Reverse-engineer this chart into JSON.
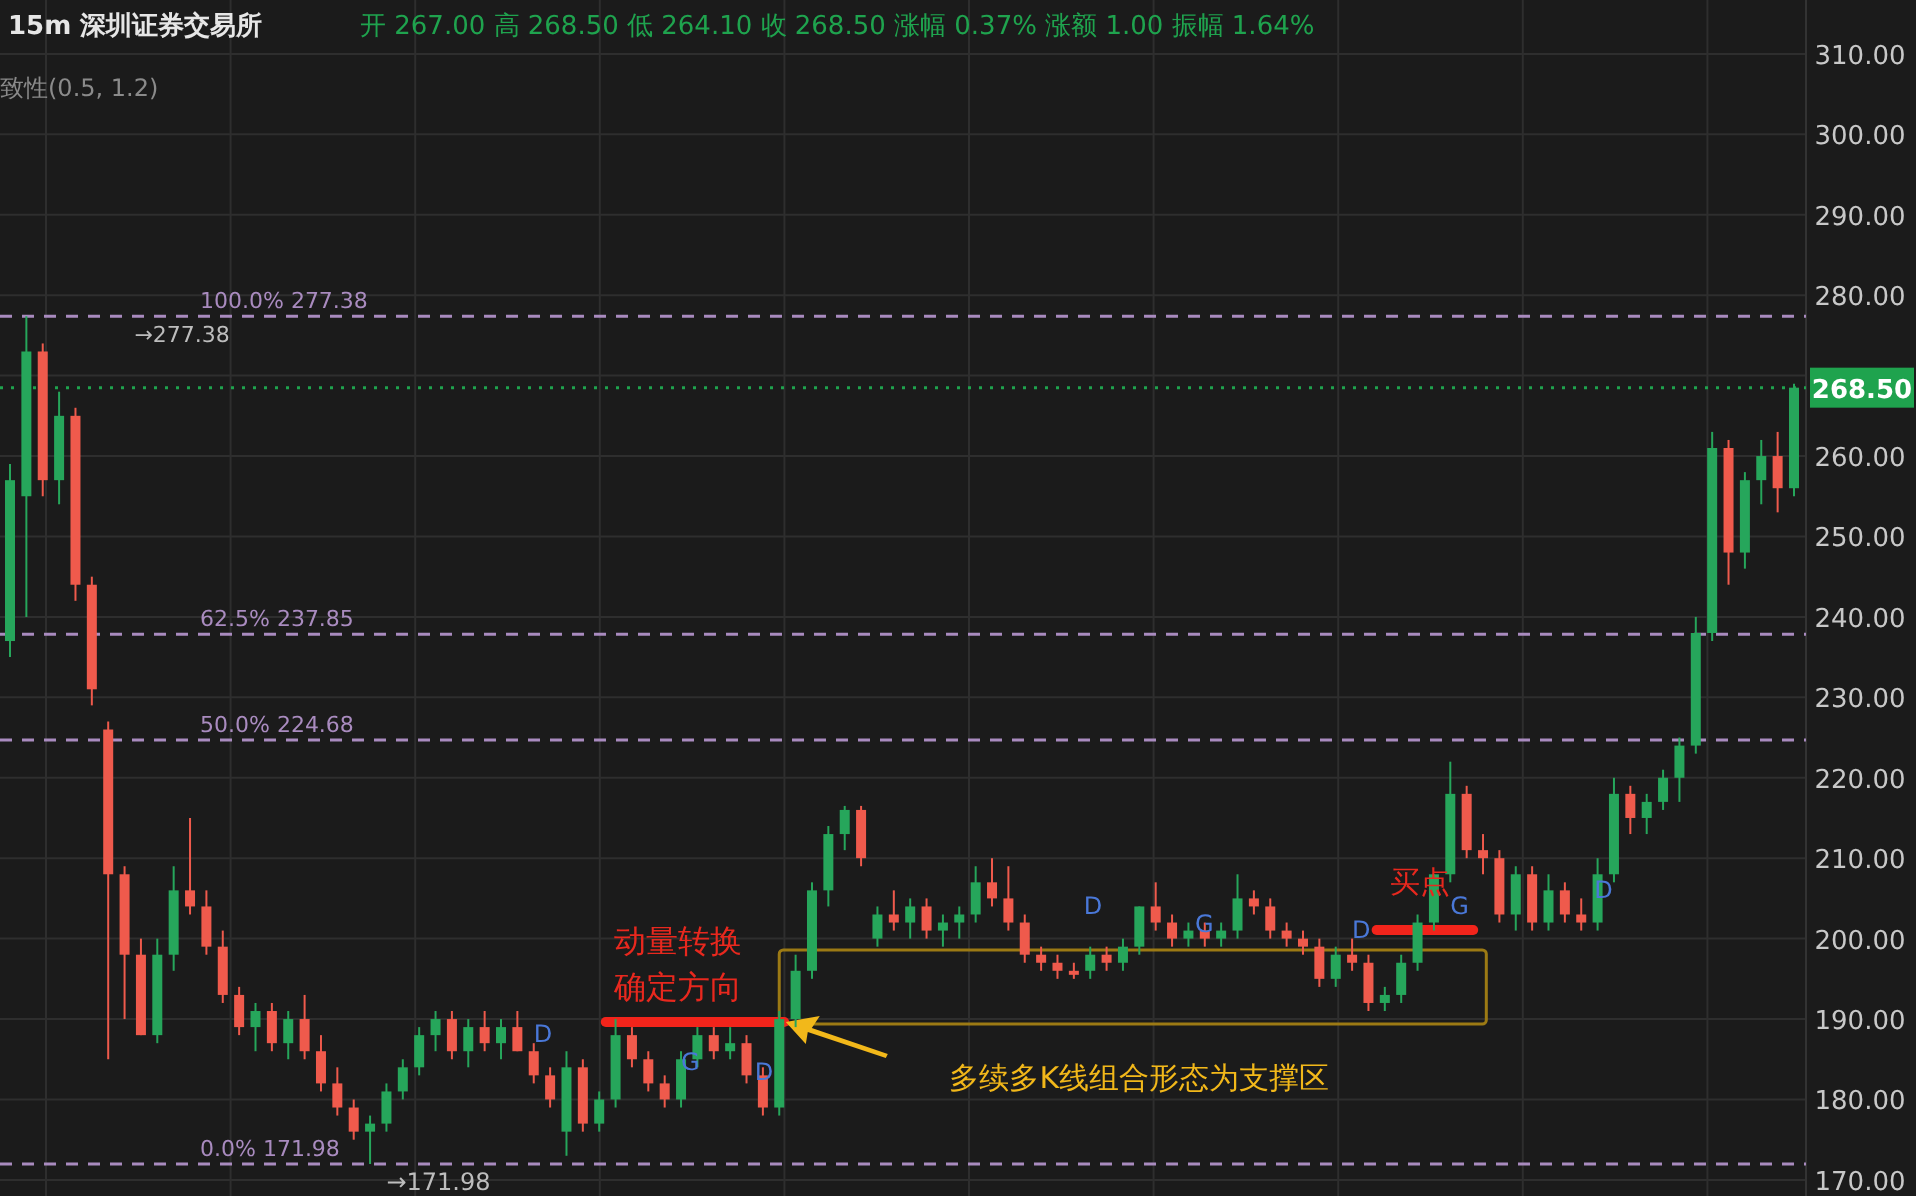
{
  "chart_data": {
    "type": "candlestick",
    "title": "15m 深圳证券交易所",
    "subtitle": "开 267.00 高 268.50 低 264.10 收 268.50 涨幅 0.37% 涨额 1.00 振幅 1.64%",
    "annotations": [
      "致性(0.5, 1.2)",
      {
        "text": "→171.98",
        "y": 171.98
      },
      {
        "text": "→277.38",
        "y": 277.38
      },
      "动量转换",
      "确定方向",
      "多续多K线组合形态为支撑区",
      "买点",
      "D",
      "G",
      "D",
      "D",
      "G",
      "D",
      "G",
      "D"
    ],
    "categories": [
      null,
      null,
      null,
      null,
      null,
      null,
      null,
      null,
      null,
      null,
      null,
      null,
      null,
      null,
      null,
      null,
      null,
      null,
      null,
      null,
      null,
      null,
      null,
      null,
      null,
      null,
      null,
      null,
      null,
      null,
      null,
      null,
      null,
      null,
      null,
      null,
      null,
      null,
      null,
      null,
      null,
      null,
      null,
      null,
      null,
      null,
      null,
      null,
      null,
      null,
      null,
      null,
      null,
      null,
      null,
      null,
      null,
      null,
      null,
      null,
      null,
      null,
      null,
      null,
      null,
      null,
      null,
      null,
      null,
      null,
      null,
      null,
      null,
      null,
      null,
      null,
      null,
      null,
      null,
      null,
      null,
      null,
      null,
      null,
      null,
      null,
      null,
      null,
      null,
      null,
      null,
      null,
      null,
      null,
      null,
      null,
      null,
      null,
      null,
      null,
      null,
      null,
      null,
      null,
      null,
      null,
      null,
      null,
      null,
      null
    ],
    "ohlc": [
      [
        237,
        259,
        235,
        257
      ],
      [
        255,
        277.38,
        240,
        273
      ],
      [
        273,
        274,
        255,
        257
      ],
      [
        257,
        268,
        254,
        265
      ],
      [
        265,
        266,
        242,
        244
      ],
      [
        244,
        245,
        229,
        231
      ],
      [
        226,
        227,
        185,
        208
      ],
      [
        208,
        209,
        190,
        198
      ],
      [
        198,
        200,
        188,
        188
      ],
      [
        188,
        200,
        187,
        198
      ],
      [
        198,
        209,
        196,
        206
      ],
      [
        206,
        215,
        203,
        204
      ],
      [
        204,
        206,
        198,
        199
      ],
      [
        199,
        201,
        192,
        193
      ],
      [
        193,
        194,
        188,
        189
      ],
      [
        189,
        192,
        186,
        191
      ],
      [
        191,
        192,
        186,
        187
      ],
      [
        187,
        191,
        185,
        190
      ],
      [
        190,
        193,
        185,
        186
      ],
      [
        186,
        188,
        181,
        182
      ],
      [
        182,
        184,
        178,
        179
      ],
      [
        179,
        180,
        175,
        176
      ],
      [
        176,
        178,
        171.98,
        177
      ],
      [
        177,
        182,
        176,
        181
      ],
      [
        181,
        185,
        180,
        184
      ],
      [
        184,
        189,
        183,
        188
      ],
      [
        188,
        191,
        186,
        190
      ],
      [
        190,
        191,
        185,
        186
      ],
      [
        186,
        190,
        184,
        189
      ],
      [
        189,
        191,
        186,
        187
      ],
      [
        187,
        190,
        185,
        189
      ],
      [
        189,
        191,
        186,
        186
      ],
      [
        186,
        187,
        182,
        183
      ],
      [
        183,
        184,
        179,
        180
      ],
      [
        176,
        186,
        173,
        184
      ],
      [
        184,
        185,
        176,
        177
      ],
      [
        177,
        181,
        176,
        180
      ],
      [
        180,
        190,
        179,
        188
      ],
      [
        188,
        189,
        184,
        185
      ],
      [
        185,
        186,
        181,
        182
      ],
      [
        182,
        183,
        179,
        180
      ],
      [
        180,
        186,
        179,
        185
      ],
      [
        185,
        189,
        184,
        188
      ],
      [
        188,
        189,
        185,
        186
      ],
      [
        186,
        189,
        185,
        187
      ],
      [
        187,
        188,
        182,
        183
      ],
      [
        183,
        184,
        178,
        179
      ],
      [
        179,
        191,
        178,
        190
      ],
      [
        190,
        198,
        189,
        196
      ],
      [
        196,
        207,
        195,
        206
      ],
      [
        206,
        214,
        204,
        213
      ],
      [
        213,
        216.5,
        211,
        216
      ],
      [
        216,
        216.5,
        209,
        210
      ],
      [
        200,
        204,
        199,
        203
      ],
      [
        203,
        206,
        201,
        202
      ],
      [
        202,
        205,
        200,
        204
      ],
      [
        204,
        205,
        200,
        201
      ],
      [
        201,
        203,
        199,
        202
      ],
      [
        202,
        204,
        200,
        203
      ],
      [
        203,
        209,
        202,
        207
      ],
      [
        207,
        210,
        204,
        205
      ],
      [
        205,
        209,
        201,
        202
      ],
      [
        202,
        203,
        197,
        198
      ],
      [
        198,
        199,
        196,
        197
      ],
      [
        197,
        198,
        195,
        196
      ],
      [
        196,
        197,
        195,
        195.5
      ],
      [
        196,
        199,
        195,
        198
      ],
      [
        198,
        199,
        196,
        197
      ],
      [
        197,
        200,
        196,
        199
      ],
      [
        199,
        204,
        198,
        204
      ],
      [
        204,
        207,
        201,
        202
      ],
      [
        202,
        203,
        199,
        200
      ],
      [
        200,
        202,
        199,
        201
      ],
      [
        201,
        202,
        199,
        200
      ],
      [
        200,
        202,
        199,
        201
      ],
      [
        201,
        208,
        200,
        205
      ],
      [
        205,
        206,
        203,
        204
      ],
      [
        204,
        205,
        200,
        201
      ],
      [
        201,
        202,
        199,
        200
      ],
      [
        200,
        201,
        198,
        199
      ],
      [
        199,
        200,
        194,
        195
      ],
      [
        195,
        199,
        194,
        198
      ],
      [
        198,
        200,
        196,
        197
      ],
      [
        197,
        198,
        191,
        192
      ],
      [
        192,
        194,
        191,
        193
      ],
      [
        193,
        198,
        192,
        197
      ],
      [
        197,
        203,
        196,
        202
      ],
      [
        202,
        208,
        201,
        208
      ],
      [
        208,
        222,
        207,
        218
      ],
      [
        218,
        219,
        210,
        211
      ],
      [
        211,
        213,
        208,
        210
      ],
      [
        210,
        211,
        202,
        203
      ],
      [
        203,
        209,
        201,
        208
      ],
      [
        208,
        209,
        201,
        202
      ],
      [
        202,
        208,
        201,
        206
      ],
      [
        206,
        207,
        202,
        203
      ],
      [
        203,
        205,
        201,
        202
      ],
      [
        202,
        210,
        201,
        208
      ],
      [
        208,
        220,
        207,
        218
      ],
      [
        218,
        219,
        213,
        215
      ],
      [
        215,
        218,
        213,
        217
      ],
      [
        217,
        221,
        216,
        220
      ],
      [
        220,
        225,
        217,
        224
      ],
      [
        224,
        240,
        223,
        238
      ],
      [
        238,
        263,
        237,
        261
      ],
      [
        261,
        262,
        244,
        248
      ],
      [
        248,
        258,
        246,
        257
      ],
      [
        257,
        262,
        254,
        260
      ],
      [
        260,
        263,
        253,
        256
      ],
      [
        256,
        269,
        255,
        268.5
      ]
    ],
    "colors": [
      "#26a65b",
      "#26a65b",
      "#ef5a4c",
      "#26a65b",
      "#ef5a4c",
      "#ef5a4c",
      "#ef5a4c",
      "#ef5a4c",
      "#ef5a4c",
      "#26a65b",
      "#26a65b",
      "#ef5a4c",
      "#ef5a4c",
      "#ef5a4c",
      "#ef5a4c",
      "#26a65b",
      "#ef5a4c",
      "#26a65b",
      "#ef5a4c",
      "#ef5a4c",
      "#ef5a4c",
      "#ef5a4c",
      "#26a65b",
      "#26a65b",
      "#26a65b",
      "#26a65b",
      "#26a65b",
      "#ef5a4c",
      "#26a65b",
      "#ef5a4c",
      "#26a65b",
      "#ef5a4c",
      "#ef5a4c",
      "#ef5a4c",
      "#26a65b",
      "#ef5a4c",
      "#26a65b",
      "#26a65b",
      "#ef5a4c",
      "#ef5a4c",
      "#ef5a4c",
      "#26a65b",
      "#26a65b",
      "#ef5a4c",
      "#26a65b",
      "#ef5a4c",
      "#ef5a4c",
      "#26a65b",
      "#26a65b",
      "#26a65b",
      "#26a65b",
      "#26a65b",
      "#ef5a4c",
      "#26a65b",
      "#ef5a4c",
      "#26a65b",
      "#ef5a4c",
      "#26a65b",
      "#26a65b",
      "#26a65b",
      "#ef5a4c",
      "#ef5a4c",
      "#ef5a4c",
      "#ef5a4c",
      "#ef5a4c",
      "#ef5a4c",
      "#26a65b",
      "#ef5a4c",
      "#26a65b",
      "#26a65b",
      "#ef5a4c",
      "#ef5a4c",
      "#26a65b",
      "#ef5a4c",
      "#26a65b",
      "#26a65b",
      "#ef5a4c",
      "#ef5a4c",
      "#ef5a4c",
      "#ef5a4c",
      "#ef5a4c",
      "#26a65b",
      "#ef5a4c",
      "#ef5a4c",
      "#26a65b",
      "#26a65b",
      "#26a65b",
      "#26a65b",
      "#26a65b",
      "#ef5a4c",
      "#ef5a4c",
      "#ef5a4c",
      "#26a65b",
      "#ef5a4c",
      "#26a65b",
      "#ef5a4c",
      "#ef5a4c",
      "#26a65b",
      "#26a65b",
      "#ef5a4c",
      "#26a65b",
      "#26a65b",
      "#26a65b",
      "#26a65b",
      "#26a65b",
      "#ef5a4c",
      "#26a65b",
      "#26a65b",
      "#ef5a4c",
      "#26a65b"
    ],
    "ylim": [
      168,
      316.7
    ],
    "yticks": [
      {
        "value": 170,
        "label": "170.00"
      },
      {
        "value": 180,
        "label": "180.00"
      },
      {
        "value": 190,
        "label": "190.00"
      },
      {
        "value": 200,
        "label": "200.00"
      },
      {
        "value": 210,
        "label": "210.00"
      },
      {
        "value": 220,
        "label": "220.00"
      },
      {
        "value": 230,
        "label": "230.00"
      },
      {
        "value": 240,
        "label": "240.00"
      },
      {
        "value": 250,
        "label": "250.00"
      },
      {
        "value": 260,
        "label": "260.00"
      },
      {
        "value": 270,
        "label": null
      },
      {
        "value": 280,
        "label": "280.00"
      },
      {
        "value": 290,
        "label": "290.00"
      },
      {
        "value": 300,
        "label": "300.00"
      },
      {
        "value": 310,
        "label": "310.00"
      }
    ],
    "ref_lines": [
      {
        "axis": "y",
        "value": 277.38,
        "label": "100.0% 277.38",
        "color": "#a98bbf",
        "line_style": "dashed"
      },
      {
        "axis": "y",
        "value": 237.85,
        "label": "62.5% 237.85",
        "color": "#a98bbf",
        "line_style": "dashed"
      },
      {
        "axis": "y",
        "value": 224.68,
        "label": "50.0% 224.68",
        "color": "#a98bbf",
        "line_style": "dashed"
      },
      {
        "axis": "y",
        "value": 171.98,
        "label": "0.0% 171.98",
        "color": "#a98bbf",
        "line_style": "dashed"
      },
      {
        "axis": "y",
        "value": 268.5,
        "label": "268.50",
        "color": "#1fa34e",
        "line_style": "dotted"
      }
    ],
    "grid": true,
    "tick_labels": "y"
  }
}
